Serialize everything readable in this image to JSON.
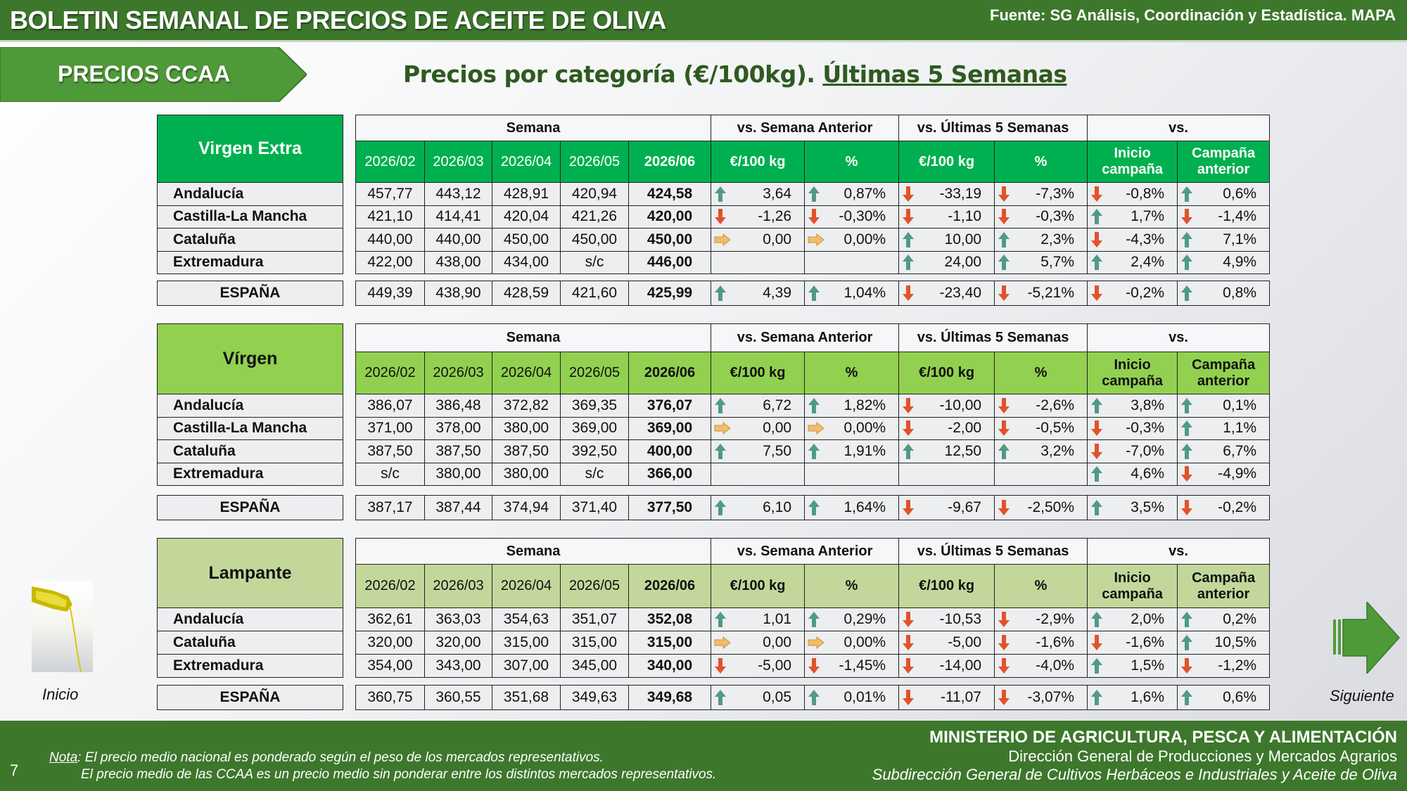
{
  "header": {
    "title": "BOLETIN SEMANAL DE PRECIOS DE ACEITE DE OLIVA",
    "source": "Fuente: SG Análisis, Coordinación y Estadística. MAPA"
  },
  "section_label": "PRECIOS CCAA",
  "subtitle": {
    "main": "Precios por categoría (€/100kg).",
    "underlined": "Últimas 5 Semanas"
  },
  "colors": {
    "header_bar": "#3d772c",
    "section_tab": "#4f9a38",
    "up_arrow": "#4f9a86",
    "down_arrow": "#e2522a",
    "flat_arrow": "#f2bd6a"
  },
  "column_headers": {
    "semana": "Semana",
    "vs_semana_anterior": "vs. Semana Anterior",
    "vs_ultimas_5": "vs. Últimas 5 Semanas",
    "vs": "vs.",
    "sub": [
      "€/100 kg",
      "%",
      "€/100 kg",
      "%",
      "Inicio campaña",
      "Campaña anterior"
    ]
  },
  "tables": [
    {
      "category": "Virgen Extra",
      "header_color": "#00b050",
      "weeks": [
        "2026/02",
        "2026/03",
        "2026/04",
        "2026/05",
        "2026/06"
      ],
      "rows": [
        {
          "region": "Andalucía",
          "prices": [
            "457,77",
            "443,12",
            "428,91",
            "420,94",
            "424,58"
          ],
          "changes": [
            [
              "up",
              "3,64"
            ],
            [
              "up",
              "0,87%"
            ],
            [
              "down",
              "-33,19"
            ],
            [
              "down",
              "-7,3%"
            ],
            [
              "down",
              "-0,8%"
            ],
            [
              "up",
              "0,6%"
            ]
          ]
        },
        {
          "region": "Castilla-La Mancha",
          "prices": [
            "421,10",
            "414,41",
            "420,04",
            "421,26",
            "420,00"
          ],
          "changes": [
            [
              "down",
              "-1,26"
            ],
            [
              "down",
              "-0,30%"
            ],
            [
              "down",
              "-1,10"
            ],
            [
              "down",
              "-0,3%"
            ],
            [
              "up",
              "1,7%"
            ],
            [
              "down",
              "-1,4%"
            ]
          ]
        },
        {
          "region": "Cataluña",
          "prices": [
            "440,00",
            "440,00",
            "450,00",
            "450,00",
            "450,00"
          ],
          "changes": [
            [
              "flat",
              "0,00"
            ],
            [
              "flat",
              "0,00%"
            ],
            [
              "up",
              "10,00"
            ],
            [
              "up",
              "2,3%"
            ],
            [
              "down",
              "-4,3%"
            ],
            [
              "up",
              "7,1%"
            ]
          ]
        },
        {
          "region": "Extremadura",
          "prices": [
            "422,00",
            "438,00",
            "434,00",
            "s/c",
            "446,00"
          ],
          "changes": [
            [
              "",
              ""
            ],
            [
              "",
              ""
            ],
            [
              "up",
              "24,00"
            ],
            [
              "up",
              "5,7%"
            ],
            [
              "up",
              "2,4%"
            ],
            [
              "up",
              "4,9%"
            ]
          ]
        }
      ],
      "total": {
        "region": "ESPAÑA",
        "prices": [
          "449,39",
          "438,90",
          "428,59",
          "421,60",
          "425,99"
        ],
        "changes": [
          [
            "up",
            "4,39"
          ],
          [
            "up",
            "1,04%"
          ],
          [
            "down",
            "-23,40"
          ],
          [
            "down",
            "-5,21%"
          ],
          [
            "down",
            "-0,2%"
          ],
          [
            "up",
            "0,8%"
          ]
        ]
      }
    },
    {
      "category": "Vírgen",
      "header_color": "#92d050",
      "weeks": [
        "2026/02",
        "2026/03",
        "2026/04",
        "2026/05",
        "2026/06"
      ],
      "rows": [
        {
          "region": "Andalucía",
          "prices": [
            "386,07",
            "386,48",
            "372,82",
            "369,35",
            "376,07"
          ],
          "changes": [
            [
              "up",
              "6,72"
            ],
            [
              "up",
              "1,82%"
            ],
            [
              "down",
              "-10,00"
            ],
            [
              "down",
              "-2,6%"
            ],
            [
              "up",
              "3,8%"
            ],
            [
              "up",
              "0,1%"
            ]
          ]
        },
        {
          "region": "Castilla-La Mancha",
          "prices": [
            "371,00",
            "378,00",
            "380,00",
            "369,00",
            "369,00"
          ],
          "changes": [
            [
              "flat",
              "0,00"
            ],
            [
              "flat",
              "0,00%"
            ],
            [
              "down",
              "-2,00"
            ],
            [
              "down",
              "-0,5%"
            ],
            [
              "down",
              "-0,3%"
            ],
            [
              "up",
              "1,1%"
            ]
          ]
        },
        {
          "region": "Cataluña",
          "prices": [
            "387,50",
            "387,50",
            "387,50",
            "392,50",
            "400,00"
          ],
          "changes": [
            [
              "up",
              "7,50"
            ],
            [
              "up",
              "1,91%"
            ],
            [
              "up",
              "12,50"
            ],
            [
              "up",
              "3,2%"
            ],
            [
              "down",
              "-7,0%"
            ],
            [
              "up",
              "6,7%"
            ]
          ]
        },
        {
          "region": "Extremadura",
          "prices": [
            "s/c",
            "380,00",
            "380,00",
            "s/c",
            "366,00"
          ],
          "changes": [
            [
              "",
              ""
            ],
            [
              "",
              ""
            ],
            [
              "",
              ""
            ],
            [
              "",
              ""
            ],
            [
              "up",
              "4,6%"
            ],
            [
              "down",
              "-4,9%"
            ]
          ]
        }
      ],
      "total": {
        "region": "ESPAÑA",
        "prices": [
          "387,17",
          "387,44",
          "374,94",
          "371,40",
          "377,50"
        ],
        "changes": [
          [
            "up",
            "6,10"
          ],
          [
            "up",
            "1,64%"
          ],
          [
            "down",
            "-9,67"
          ],
          [
            "down",
            "-2,50%"
          ],
          [
            "up",
            "3,5%"
          ],
          [
            "down",
            "-0,2%"
          ]
        ]
      }
    },
    {
      "category": "Lampante",
      "header_color": "#c4d79b",
      "weeks": [
        "2026/02",
        "2026/03",
        "2026/04",
        "2026/05",
        "2026/06"
      ],
      "rows": [
        {
          "region": "Andalucía",
          "prices": [
            "362,61",
            "363,03",
            "354,63",
            "351,07",
            "352,08"
          ],
          "changes": [
            [
              "up",
              "1,01"
            ],
            [
              "up",
              "0,29%"
            ],
            [
              "down",
              "-10,53"
            ],
            [
              "down",
              "-2,9%"
            ],
            [
              "up",
              "2,0%"
            ],
            [
              "up",
              "0,2%"
            ]
          ]
        },
        {
          "region": "Cataluña",
          "prices": [
            "320,00",
            "320,00",
            "315,00",
            "315,00",
            "315,00"
          ],
          "changes": [
            [
              "flat",
              "0,00"
            ],
            [
              "flat",
              "0,00%"
            ],
            [
              "down",
              "-5,00"
            ],
            [
              "down",
              "-1,6%"
            ],
            [
              "down",
              "-1,6%"
            ],
            [
              "up",
              "10,5%"
            ]
          ]
        },
        {
          "region": "Extremadura",
          "prices": [
            "354,00",
            "343,00",
            "307,00",
            "345,00",
            "340,00"
          ],
          "changes": [
            [
              "down",
              "-5,00"
            ],
            [
              "down",
              "-1,45%"
            ],
            [
              "down",
              "-14,00"
            ],
            [
              "down",
              "-4,0%"
            ],
            [
              "up",
              "1,5%"
            ],
            [
              "down",
              "-1,2%"
            ]
          ]
        }
      ],
      "total": {
        "region": "ESPAÑA",
        "prices": [
          "360,75",
          "360,55",
          "351,68",
          "349,63",
          "349,68"
        ],
        "changes": [
          [
            "up",
            "0,05"
          ],
          [
            "up",
            "0,01%"
          ],
          [
            "down",
            "-11,07"
          ],
          [
            "down",
            "-3,07%"
          ],
          [
            "up",
            "1,6%"
          ],
          [
            "up",
            "0,6%"
          ]
        ]
      }
    }
  ],
  "nav": {
    "prev_label": "Inicio",
    "next_label": "Siguiente"
  },
  "footer": {
    "page_number": "7",
    "note_label": "Nota",
    "note_line1": ": El precio medio nacional es ponderado según el peso de los mercados representativos.",
    "note_line2": "El precio medio de las CCAA es un precio medio sin ponderar entre los distintos mercados representativos.",
    "ministry": "MINISTERIO DE AGRICULTURA, PESCA Y ALIMENTACIÓN",
    "directorate": "Dirección General de Producciones y Mercados Agrarios",
    "subdirectorate": "Subdirección General de Cultivos Herbáceos e Industriales y Aceite de Oliva"
  }
}
